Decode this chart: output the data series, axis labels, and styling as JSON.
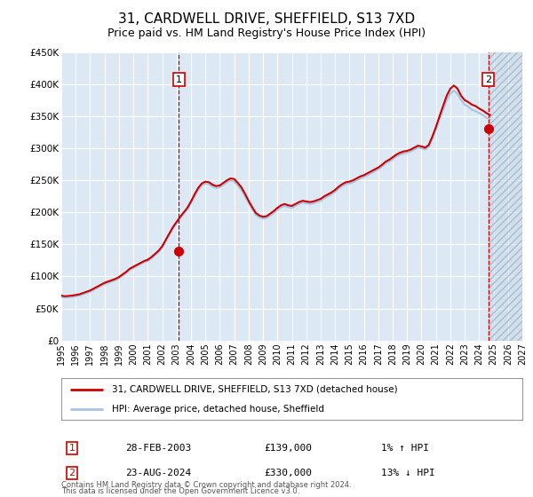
{
  "title": "31, CARDWELL DRIVE, SHEFFIELD, S13 7XD",
  "subtitle": "Price paid vs. HM Land Registry's House Price Index (HPI)",
  "title_fontsize": 11,
  "subtitle_fontsize": 9,
  "background_color": "#ffffff",
  "plot_bg_color": "#dce9f5",
  "grid_color": "#ffffff",
  "ylim": [
    0,
    450000
  ],
  "xlim_start": 1995.0,
  "xlim_end": 2027.0,
  "yticks": [
    0,
    50000,
    100000,
    150000,
    200000,
    250000,
    300000,
    350000,
    400000,
    450000
  ],
  "ytick_labels": [
    "£0",
    "£50K",
    "£100K",
    "£150K",
    "£200K",
    "£250K",
    "£300K",
    "£350K",
    "£400K",
    "£450K"
  ],
  "xticks": [
    1995,
    1996,
    1997,
    1998,
    1999,
    2000,
    2001,
    2002,
    2003,
    2004,
    2005,
    2006,
    2007,
    2008,
    2009,
    2010,
    2011,
    2012,
    2013,
    2014,
    2015,
    2016,
    2017,
    2018,
    2019,
    2020,
    2021,
    2022,
    2023,
    2024,
    2025,
    2026,
    2027
  ],
  "hpi_line_color": "#a8c4e0",
  "price_line_color": "#cc0000",
  "marker_color": "#cc0000",
  "vline_color": "#cc0000",
  "annotation_box_color": "#cc0000",
  "sale1_x": 2003.16,
  "sale1_y": 139000,
  "sale1_label": "1",
  "sale2_x": 2024.64,
  "sale2_y": 330000,
  "sale2_label": "2",
  "legend_entry1": "31, CARDWELL DRIVE, SHEFFIELD, S13 7XD (detached house)",
  "legend_entry2": "HPI: Average price, detached house, Sheffield",
  "table_row1_num": "1",
  "table_row1_date": "28-FEB-2003",
  "table_row1_price": "£139,000",
  "table_row1_hpi": "1% ↑ HPI",
  "table_row2_num": "2",
  "table_row2_date": "23-AUG-2024",
  "table_row2_price": "£330,000",
  "table_row2_hpi": "13% ↓ HPI",
  "footer_line1": "Contains HM Land Registry data © Crown copyright and database right 2024.",
  "footer_line2": "This data is licensed under the Open Government Licence v3.0.",
  "hpi_data_x": [
    1995.0,
    1995.25,
    1995.5,
    1995.75,
    1996.0,
    1996.25,
    1996.5,
    1996.75,
    1997.0,
    1997.25,
    1997.5,
    1997.75,
    1998.0,
    1998.25,
    1998.5,
    1998.75,
    1999.0,
    1999.25,
    1999.5,
    1999.75,
    2000.0,
    2000.25,
    2000.5,
    2000.75,
    2001.0,
    2001.25,
    2001.5,
    2001.75,
    2002.0,
    2002.25,
    2002.5,
    2002.75,
    2003.0,
    2003.25,
    2003.5,
    2003.75,
    2004.0,
    2004.25,
    2004.5,
    2004.75,
    2005.0,
    2005.25,
    2005.5,
    2005.75,
    2006.0,
    2006.25,
    2006.5,
    2006.75,
    2007.0,
    2007.25,
    2007.5,
    2007.75,
    2008.0,
    2008.25,
    2008.5,
    2008.75,
    2009.0,
    2009.25,
    2009.5,
    2009.75,
    2010.0,
    2010.25,
    2010.5,
    2010.75,
    2011.0,
    2011.25,
    2011.5,
    2011.75,
    2012.0,
    2012.25,
    2012.5,
    2012.75,
    2013.0,
    2013.25,
    2013.5,
    2013.75,
    2014.0,
    2014.25,
    2014.5,
    2014.75,
    2015.0,
    2015.25,
    2015.5,
    2015.75,
    2016.0,
    2016.25,
    2016.5,
    2016.75,
    2017.0,
    2017.25,
    2017.5,
    2017.75,
    2018.0,
    2018.25,
    2018.5,
    2018.75,
    2019.0,
    2019.25,
    2019.5,
    2019.75,
    2020.0,
    2020.25,
    2020.5,
    2020.75,
    2021.0,
    2021.25,
    2021.5,
    2021.75,
    2022.0,
    2022.25,
    2022.5,
    2022.75,
    2023.0,
    2023.25,
    2023.5,
    2023.75,
    2024.0,
    2024.25,
    2024.5,
    2024.75
  ],
  "hpi_data_y": [
    68000,
    67000,
    67500,
    68000,
    69000,
    70000,
    72000,
    74000,
    76000,
    79000,
    82000,
    85000,
    88000,
    90000,
    92000,
    94000,
    97000,
    101000,
    105000,
    110000,
    113000,
    116000,
    119000,
    122000,
    124000,
    128000,
    133000,
    138000,
    145000,
    155000,
    165000,
    175000,
    183000,
    191000,
    198000,
    205000,
    215000,
    225000,
    235000,
    242000,
    245000,
    244000,
    240000,
    238000,
    239000,
    243000,
    247000,
    250000,
    248000,
    242000,
    235000,
    225000,
    215000,
    205000,
    196000,
    192000,
    190000,
    191000,
    195000,
    199000,
    204000,
    208000,
    210000,
    208000,
    207000,
    210000,
    213000,
    215000,
    214000,
    213000,
    214000,
    216000,
    218000,
    222000,
    225000,
    228000,
    232000,
    237000,
    241000,
    244000,
    245000,
    247000,
    250000,
    253000,
    255000,
    258000,
    261000,
    264000,
    267000,
    271000,
    276000,
    279000,
    283000,
    287000,
    290000,
    292000,
    293000,
    295000,
    298000,
    301000,
    300000,
    298000,
    302000,
    315000,
    330000,
    345000,
    360000,
    375000,
    385000,
    390000,
    385000,
    375000,
    368000,
    365000,
    360000,
    358000,
    355000,
    352000,
    348000,
    345000
  ],
  "price_data_x": [
    1995.0,
    1995.25,
    1995.5,
    1995.75,
    1996.0,
    1996.25,
    1996.5,
    1996.75,
    1997.0,
    1997.25,
    1997.5,
    1997.75,
    1998.0,
    1998.25,
    1998.5,
    1998.75,
    1999.0,
    1999.25,
    1999.5,
    1999.75,
    2000.0,
    2000.25,
    2000.5,
    2000.75,
    2001.0,
    2001.25,
    2001.5,
    2001.75,
    2002.0,
    2002.25,
    2002.5,
    2002.75,
    2003.0,
    2003.25,
    2003.5,
    2003.75,
    2004.0,
    2004.25,
    2004.5,
    2004.75,
    2005.0,
    2005.25,
    2005.5,
    2005.75,
    2006.0,
    2006.25,
    2006.5,
    2006.75,
    2007.0,
    2007.25,
    2007.5,
    2007.75,
    2008.0,
    2008.25,
    2008.5,
    2008.75,
    2009.0,
    2009.25,
    2009.5,
    2009.75,
    2010.0,
    2010.25,
    2010.5,
    2010.75,
    2011.0,
    2011.25,
    2011.5,
    2011.75,
    2012.0,
    2012.25,
    2012.5,
    2012.75,
    2013.0,
    2013.25,
    2013.5,
    2013.75,
    2014.0,
    2014.25,
    2014.5,
    2014.75,
    2015.0,
    2015.25,
    2015.5,
    2015.75,
    2016.0,
    2016.25,
    2016.5,
    2016.75,
    2017.0,
    2017.25,
    2017.5,
    2017.75,
    2018.0,
    2018.25,
    2018.5,
    2018.75,
    2019.0,
    2019.25,
    2019.5,
    2019.75,
    2020.0,
    2020.25,
    2020.5,
    2020.75,
    2021.0,
    2021.25,
    2021.5,
    2021.75,
    2022.0,
    2022.25,
    2022.5,
    2022.75,
    2023.0,
    2023.25,
    2023.5,
    2023.75,
    2024.0,
    2024.25,
    2024.5,
    2024.75
  ],
  "price_data_y": [
    70000,
    69000,
    69500,
    70000,
    71000,
    72000,
    74000,
    76000,
    78000,
    81000,
    84000,
    87000,
    90000,
    92000,
    94000,
    96000,
    99000,
    103000,
    107000,
    112000,
    115000,
    118000,
    121000,
    124000,
    126000,
    130000,
    135000,
    140000,
    147000,
    157000,
    167000,
    177000,
    185000,
    193000,
    200000,
    207000,
    217000,
    228000,
    238000,
    245000,
    248000,
    247000,
    243000,
    241000,
    242000,
    246000,
    250000,
    253000,
    252000,
    246000,
    239000,
    229000,
    218000,
    208000,
    199000,
    195000,
    193000,
    194000,
    198000,
    202000,
    207000,
    211000,
    213000,
    211000,
    210000,
    213000,
    216000,
    218000,
    217000,
    216000,
    217000,
    219000,
    221000,
    225000,
    228000,
    231000,
    235000,
    240000,
    244000,
    247000,
    248000,
    250000,
    253000,
    256000,
    258000,
    261000,
    264000,
    267000,
    270000,
    274000,
    279000,
    282000,
    286000,
    290000,
    293000,
    295000,
    296000,
    298000,
    301000,
    304000,
    303000,
    301000,
    305000,
    318000,
    333000,
    350000,
    366000,
    382000,
    393000,
    398000,
    393000,
    382000,
    375000,
    372000,
    368000,
    366000,
    362000,
    359000,
    355000,
    352000
  ]
}
